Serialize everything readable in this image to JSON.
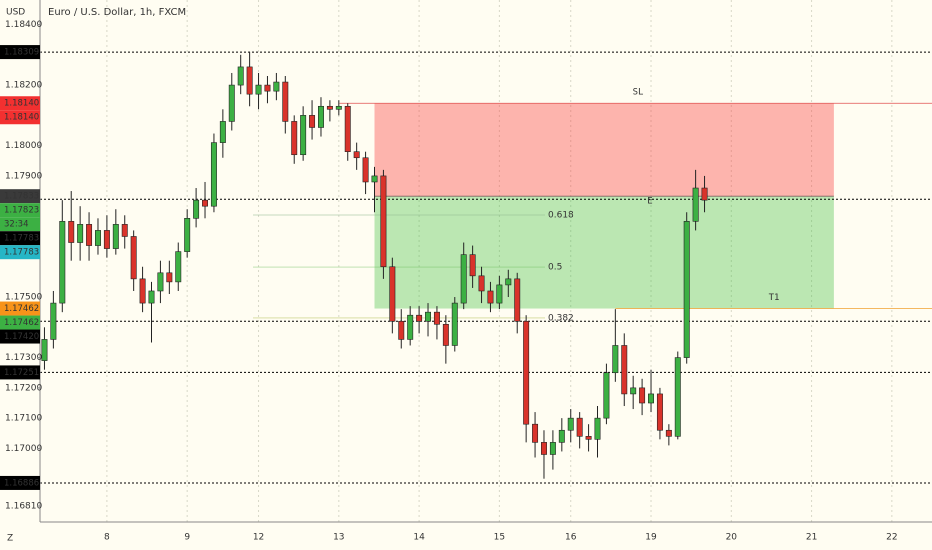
{
  "chart_data": {
    "type": "candlestick",
    "title": "Euro / U.S. Dollar, 1h, FXCM",
    "currency": "USD",
    "scale_button": "Z",
    "categories": [
      null,
      null,
      null,
      null,
      null,
      null,
      null,
      "8",
      null,
      null,
      null,
      null,
      null,
      null,
      null,
      null,
      "9",
      null,
      null,
      null,
      null,
      null,
      null,
      null,
      "12",
      null,
      null,
      null,
      null,
      null,
      null,
      null,
      null,
      "13",
      null,
      null,
      null,
      null,
      null,
      null,
      null,
      null,
      "14",
      null,
      null,
      null,
      null,
      null,
      null,
      null,
      null,
      "15",
      null,
      null,
      null,
      null,
      null,
      null,
      null,
      "16",
      null,
      null,
      null,
      null,
      null,
      null,
      null,
      null,
      "19",
      null,
      null,
      null,
      null,
      null,
      null,
      null,
      null,
      "20",
      null,
      null,
      null,
      null,
      null,
      null,
      null,
      null,
      "21",
      null,
      null,
      null,
      null,
      null,
      null,
      null,
      null,
      "22",
      null,
      null,
      null,
      null
    ],
    "open": [
      1.1729,
      1.1736,
      1.1748,
      1.1775,
      1.1768,
      1.1774,
      1.1767,
      1.1772,
      1.1766,
      1.1774,
      1.177,
      1.1756,
      1.1748,
      1.1752,
      1.1758,
      1.1755,
      1.1765,
      1.1776,
      1.1782,
      1.178,
      1.1801,
      1.1808,
      1.182,
      1.1826,
      1.1817,
      1.182,
      1.1818,
      1.1821,
      1.1808,
      1.1797,
      1.181,
      1.1806,
      1.1813,
      1.1812,
      1.1813,
      1.1798,
      1.1796,
      1.1788,
      1.179,
      1.176,
      1.1742,
      1.1736,
      1.1744,
      1.1742,
      1.1745,
      1.1741,
      1.1734,
      1.1748,
      1.1764,
      1.1757,
      1.1752,
      1.1748,
      1.1754,
      1.1756,
      1.1742,
      1.1708,
      1.1702,
      1.1698,
      1.1702,
      1.1706,
      1.171,
      1.1704,
      1.1703,
      1.171,
      1.1725,
      1.1734,
      1.1718,
      1.172,
      1.1715,
      1.1718,
      1.1706,
      1.1704,
      1.173,
      1.1775,
      1.1786,
      null,
      null,
      null,
      null,
      null,
      null,
      null,
      null,
      null,
      null,
      null,
      null,
      null,
      null,
      null,
      null,
      null,
      null,
      null,
      null,
      null,
      null,
      null,
      null,
      null
    ],
    "high": [
      1.174,
      1.1752,
      1.1782,
      1.1785,
      1.178,
      1.1778,
      1.1776,
      1.1777,
      1.1779,
      1.1777,
      1.1772,
      1.176,
      1.1755,
      1.1762,
      1.1762,
      1.1768,
      1.1779,
      1.1786,
      1.1788,
      1.1804,
      1.1812,
      1.1824,
      1.183,
      1.1831,
      1.1824,
      1.1823,
      1.1824,
      1.1823,
      1.181,
      1.1813,
      1.1815,
      1.1816,
      1.1815,
      1.1815,
      1.1814,
      1.1801,
      1.1798,
      1.1793,
      1.1792,
      1.1763,
      1.1746,
      1.1747,
      1.1747,
      1.1748,
      1.1747,
      1.1744,
      1.175,
      1.1768,
      1.1767,
      1.176,
      1.1755,
      1.1757,
      1.1759,
      1.1758,
      1.1744,
      1.1712,
      1.1706,
      1.1706,
      1.171,
      1.1713,
      1.1712,
      1.1708,
      1.1714,
      1.1728,
      1.1746,
      1.1738,
      1.1724,
      1.1723,
      1.1726,
      1.172,
      1.1708,
      1.1732,
      1.1778,
      1.1792,
      1.179,
      null,
      null,
      null,
      null,
      null,
      null,
      null,
      null,
      null,
      null,
      null,
      null,
      null,
      null,
      null,
      null,
      null,
      null,
      null,
      null,
      null,
      null,
      null,
      null,
      null
    ],
    "low": [
      1.1726,
      1.1733,
      1.1745,
      1.1762,
      1.1762,
      1.1762,
      1.1764,
      1.1763,
      1.1764,
      1.1766,
      1.1752,
      1.1745,
      1.1735,
      1.1748,
      1.1751,
      1.1752,
      1.1763,
      1.1773,
      1.1776,
      1.1778,
      1.1796,
      1.1805,
      1.1817,
      1.1813,
      1.1812,
      1.1814,
      1.1815,
      1.1804,
      1.1794,
      1.1795,
      1.1802,
      1.1803,
      1.1808,
      1.181,
      1.1795,
      1.1792,
      1.1784,
      1.1778,
      1.1756,
      1.1738,
      1.1733,
      1.1734,
      1.1738,
      1.1737,
      1.1736,
      1.1728,
      1.1732,
      1.1746,
      1.1753,
      1.1748,
      1.1745,
      1.1746,
      1.175,
      1.1738,
      1.1702,
      1.1697,
      1.169,
      1.1693,
      1.1699,
      1.1702,
      1.17,
      1.1699,
      1.1697,
      1.1708,
      1.1722,
      1.1714,
      1.1713,
      1.1711,
      1.1712,
      1.1703,
      1.1701,
      1.1703,
      1.1728,
      1.1772,
      1.1778,
      null,
      null,
      null,
      null,
      null,
      null,
      null,
      null,
      null,
      null,
      null,
      null,
      null,
      null,
      null,
      null,
      null,
      null,
      null,
      null,
      null,
      null,
      null,
      null,
      null
    ],
    "close": [
      1.1736,
      1.1748,
      1.1775,
      1.1768,
      1.1774,
      1.1767,
      1.1772,
      1.1766,
      1.1774,
      1.177,
      1.1756,
      1.1748,
      1.1752,
      1.1758,
      1.1755,
      1.1765,
      1.1776,
      1.1782,
      1.178,
      1.1801,
      1.1808,
      1.182,
      1.1826,
      1.1817,
      1.182,
      1.1818,
      1.1821,
      1.1808,
      1.1797,
      1.181,
      1.1806,
      1.1813,
      1.1812,
      1.1813,
      1.1798,
      1.1796,
      1.1788,
      1.179,
      1.176,
      1.1742,
      1.1736,
      1.1744,
      1.1742,
      1.1745,
      1.1741,
      1.1734,
      1.1748,
      1.1764,
      1.1757,
      1.1752,
      1.1748,
      1.1754,
      1.1756,
      1.1742,
      1.1708,
      1.1702,
      1.1698,
      1.1702,
      1.1706,
      1.171,
      1.1704,
      1.1703,
      1.171,
      1.1725,
      1.1734,
      1.1718,
      1.172,
      1.1715,
      1.1718,
      1.1706,
      1.1704,
      1.173,
      1.1775,
      1.1786,
      1.1782,
      null,
      null,
      null,
      null,
      null,
      null,
      null,
      null,
      null,
      null,
      null,
      null,
      null,
      null,
      null,
      null,
      null,
      null,
      null,
      null,
      null,
      null,
      null,
      null,
      null
    ],
    "up_color": "#3cb043",
    "down_color": "#d9332b",
    "ylim": [
      1.16757,
      1.18481
    ],
    "yticks": [
      {
        "value": 1.184,
        "label": "1.18400"
      },
      {
        "value": 1.182,
        "label": "1.18200"
      },
      {
        "value": 1.18,
        "label": "1.18000"
      },
      {
        "value": 1.179,
        "label": "1.17900"
      },
      {
        "value": 1.175,
        "label": "1.17500"
      },
      {
        "value": 1.173,
        "label": "1.17300"
      },
      {
        "value": 1.172,
        "label": "1.17200"
      },
      {
        "value": 1.171,
        "label": "1.17100"
      },
      {
        "value": 1.17,
        "label": "1.17000"
      },
      {
        "value": 1.1681,
        "label": "1.16810"
      }
    ],
    "grid": true,
    "price_labels": [
      {
        "value": 1.18309,
        "label": "1.18309",
        "color": "#000000",
        "line": "#000000"
      },
      {
        "value": 1.1814,
        "label": "1.18140",
        "color": "#f23030",
        "line": null
      },
      {
        "value": 1.1814,
        "label": "1.18140",
        "color": "#f23030",
        "line": null
      },
      {
        "value": 1.17833,
        "label": "1.17833",
        "color": "#3a3a3a",
        "line": null
      },
      {
        "value": 1.17823,
        "label": "1.17823",
        "color": "#3cb043",
        "line": "#000000"
      },
      {
        "value": 1.17783,
        "label": "1.17783",
        "color": "#000000",
        "line": null
      },
      {
        "value": 1.17783,
        "label": "1.17783",
        "color": "#26b6c6",
        "line": null
      },
      {
        "value": 1.17462,
        "label": "1.17462",
        "color": "#f7931a",
        "line": null
      },
      {
        "value": 1.17462,
        "label": "1.17462",
        "color": "#3cb043",
        "line": null
      },
      {
        "value": 1.1742,
        "label": "1.17420",
        "color": "#000000",
        "line": "#000000"
      },
      {
        "value": 1.17251,
        "label": "1.17251",
        "color": "#000000",
        "line": "#000000"
      },
      {
        "value": 1.16886,
        "label": "1.16886",
        "color": "#000000",
        "line": "#000000"
      }
    ],
    "countdown": "32:34",
    "position": {
      "stop": 1.1814,
      "entry": 1.17833,
      "target": 1.17462,
      "stop_label": "SL",
      "entry_label": "E",
      "target_label": "T1"
    },
    "fib_levels": [
      {
        "value": 0.618,
        "price": 1.17771,
        "color": "#8fb88f"
      },
      {
        "value": 0.5,
        "price": 1.17599,
        "color": "#6fbf5f"
      },
      {
        "value": 0.382,
        "price": 1.17431,
        "color": "#a8b840"
      }
    ]
  }
}
